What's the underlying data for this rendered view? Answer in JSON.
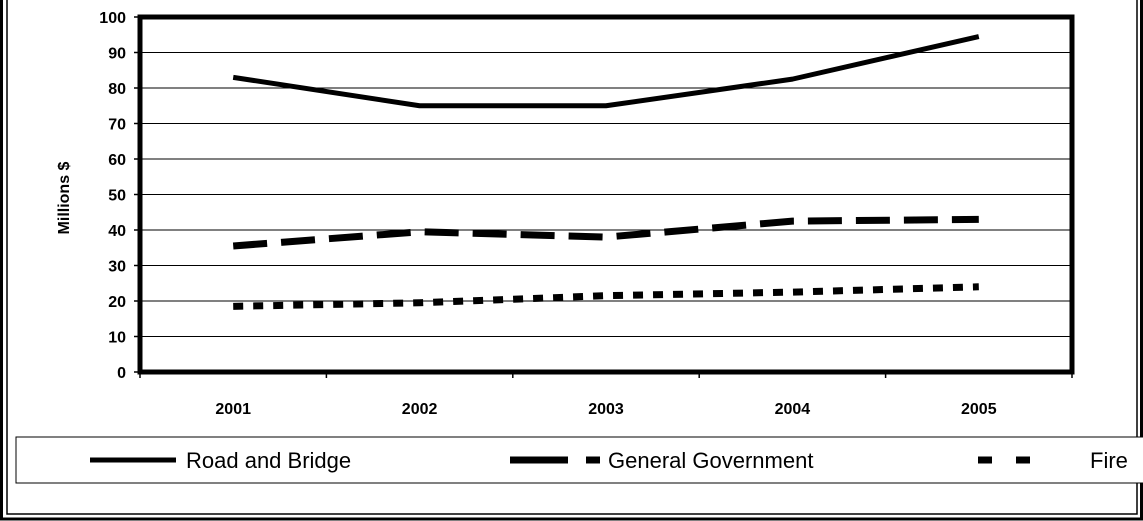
{
  "chart_data": {
    "type": "line",
    "categories": [
      "2001",
      "2002",
      "2003",
      "2004",
      "2005"
    ],
    "ylabel": "Millions $",
    "xlabel": "",
    "ylim": [
      0,
      100
    ],
    "yticks": [
      0,
      10,
      20,
      30,
      40,
      50,
      60,
      70,
      80,
      90,
      100
    ],
    "grid": true,
    "legend_position": "bottom",
    "series": [
      {
        "name": "Road and Bridge",
        "values": [
          83,
          75,
          75,
          82.5,
          94.5
        ],
        "style": "solid"
      },
      {
        "name": "General Government",
        "values": [
          35.5,
          39.5,
          38,
          42.5,
          43
        ],
        "style": "long-dash"
      },
      {
        "name": "Fire",
        "values": [
          18.5,
          19.5,
          21.5,
          22.5,
          24
        ],
        "style": "square-dot"
      }
    ],
    "colors": {
      "line": "#000000",
      "background": "#ffffff"
    }
  }
}
